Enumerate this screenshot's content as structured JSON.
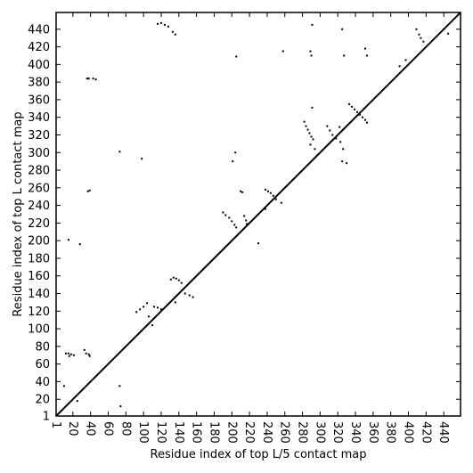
{
  "chart_data": {
    "type": "scatter",
    "title": "",
    "xlabel": "Residue index of top L/5 contact map",
    "ylabel": "Residue index of top L contact map",
    "xlim": [
      1,
      459
    ],
    "ylim": [
      1,
      459
    ],
    "xticks": [
      1,
      20,
      40,
      60,
      80,
      100,
      120,
      140,
      160,
      180,
      200,
      220,
      240,
      260,
      280,
      300,
      320,
      340,
      360,
      380,
      400,
      420,
      440
    ],
    "yticks": [
      1,
      20,
      40,
      60,
      80,
      100,
      120,
      140,
      160,
      180,
      200,
      220,
      240,
      260,
      280,
      300,
      320,
      340,
      360,
      380,
      400,
      420,
      440
    ],
    "grid": false,
    "legend": "none",
    "colors": {
      "points": "#000000",
      "diagonal": "#000000",
      "frame": "#000000"
    },
    "diagonal": [
      [
        1,
        1
      ],
      [
        459,
        459
      ]
    ],
    "series": [
      {
        "points": [
          [
            10,
            35
          ],
          [
            12,
            72
          ],
          [
            15,
            72
          ],
          [
            18,
            71
          ],
          [
            21,
            70
          ],
          [
            16,
            69
          ],
          [
            33,
            76
          ],
          [
            35,
            72
          ],
          [
            38,
            71
          ],
          [
            39,
            69
          ],
          [
            73,
            35
          ],
          [
            74,
            12
          ],
          [
            36,
            384
          ],
          [
            38,
            384
          ],
          [
            43,
            384
          ],
          [
            46,
            383
          ],
          [
            37,
            256
          ],
          [
            39,
            257
          ],
          [
            73,
            301
          ],
          [
            98,
            293
          ],
          [
            116,
            446
          ],
          [
            120,
            447
          ],
          [
            124,
            445
          ],
          [
            128,
            443
          ],
          [
            133,
            437
          ],
          [
            136,
            434
          ],
          [
            92,
            119
          ],
          [
            96,
            122
          ],
          [
            100,
            125
          ],
          [
            104,
            129
          ],
          [
            106,
            114
          ],
          [
            110,
            104
          ],
          [
            112,
            125
          ],
          [
            116,
            124
          ],
          [
            120,
            122
          ],
          [
            131,
            156
          ],
          [
            134,
            158
          ],
          [
            137,
            157
          ],
          [
            140,
            155
          ],
          [
            143,
            152
          ],
          [
            147,
            140
          ],
          [
            152,
            138
          ],
          [
            156,
            136
          ],
          [
            136,
            130
          ],
          [
            190,
            232
          ],
          [
            193,
            229
          ],
          [
            197,
            226
          ],
          [
            200,
            222
          ],
          [
            203,
            218
          ],
          [
            205,
            215
          ],
          [
            201,
            290
          ],
          [
            204,
            300
          ],
          [
            205,
            409
          ],
          [
            210,
            256
          ],
          [
            212,
            255
          ],
          [
            214,
            228
          ],
          [
            216,
            223
          ],
          [
            217,
            219
          ],
          [
            238,
            258
          ],
          [
            241,
            256
          ],
          [
            244,
            254
          ],
          [
            247,
            251
          ],
          [
            250,
            247
          ],
          [
            230,
            197
          ],
          [
            238,
            236
          ],
          [
            256,
            243
          ],
          [
            258,
            415
          ],
          [
            282,
            335
          ],
          [
            284,
            330
          ],
          [
            286,
            326
          ],
          [
            288,
            322
          ],
          [
            290,
            318
          ],
          [
            292,
            315
          ],
          [
            289,
            309
          ],
          [
            294,
            304
          ],
          [
            289,
            415
          ],
          [
            290,
            410
          ],
          [
            291,
            445
          ],
          [
            291,
            351
          ],
          [
            308,
            330
          ],
          [
            311,
            325
          ],
          [
            314,
            320
          ],
          [
            318,
            316
          ],
          [
            322,
            329
          ],
          [
            323,
            312
          ],
          [
            325,
            290
          ],
          [
            326,
            304
          ],
          [
            325,
            440
          ],
          [
            327,
            410
          ],
          [
            333,
            355
          ],
          [
            336,
            352
          ],
          [
            339,
            349
          ],
          [
            342,
            346
          ],
          [
            345,
            343
          ],
          [
            348,
            340
          ],
          [
            351,
            337
          ],
          [
            353,
            334
          ],
          [
            330,
            288
          ],
          [
            351,
            418
          ],
          [
            353,
            410
          ],
          [
            409,
            440
          ],
          [
            412,
            434
          ],
          [
            414,
            430
          ],
          [
            417,
            426
          ],
          [
            390,
            398
          ],
          [
            397,
            405
          ],
          [
            440,
            440
          ],
          [
            445,
            435
          ],
          [
            25,
            18
          ],
          [
            28,
            196
          ],
          [
            15,
            201
          ]
        ]
      }
    ]
  }
}
